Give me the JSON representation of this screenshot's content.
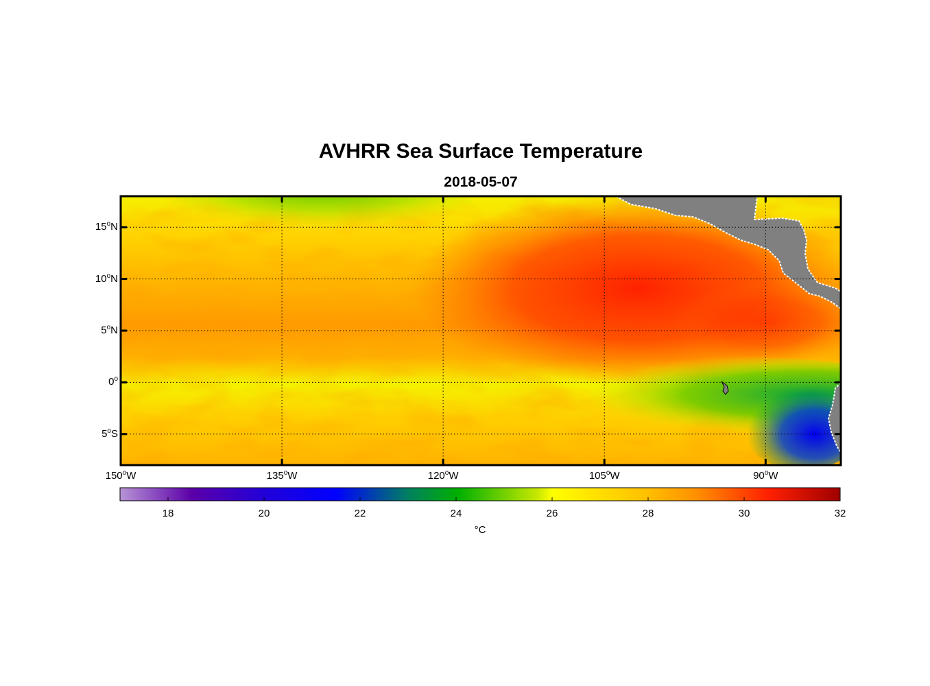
{
  "title": "AVHRR Sea Surface Temperature",
  "subtitle": "2018-05-07",
  "map": {
    "lon_range": [
      -150,
      -83
    ],
    "lat_range": [
      -8,
      18
    ],
    "lat_ticks": [
      {
        "value": 15,
        "num": "15",
        "hemi": "N"
      },
      {
        "value": 10,
        "num": "10",
        "hemi": "N"
      },
      {
        "value": 5,
        "num": "5",
        "hemi": "N"
      },
      {
        "value": 0,
        "num": "0",
        "hemi": ""
      },
      {
        "value": -5,
        "num": "5",
        "hemi": "S"
      }
    ],
    "lon_ticks": [
      {
        "value": -150,
        "num": "150",
        "hemi": "W"
      },
      {
        "value": -135,
        "num": "135",
        "hemi": "W"
      },
      {
        "value": -120,
        "num": "120",
        "hemi": "W"
      },
      {
        "value": -105,
        "num": "105",
        "hemi": "W"
      },
      {
        "value": -90,
        "num": "90",
        "hemi": "W"
      }
    ],
    "degree_symbol": "o",
    "land_color": "#808080",
    "coast_color": "#ffffff"
  },
  "colorbar": {
    "min": 17,
    "max": 32,
    "ticks": [
      "18",
      "20",
      "22",
      "24",
      "26",
      "28",
      "30",
      "32"
    ],
    "units": "°C",
    "colors": [
      "#b894d6",
      "#5b00a8",
      "#0000ff",
      "#00a040",
      "#40c000",
      "#ffff00",
      "#ffd000",
      "#ff9000",
      "#ff2000",
      "#a00000"
    ]
  }
}
